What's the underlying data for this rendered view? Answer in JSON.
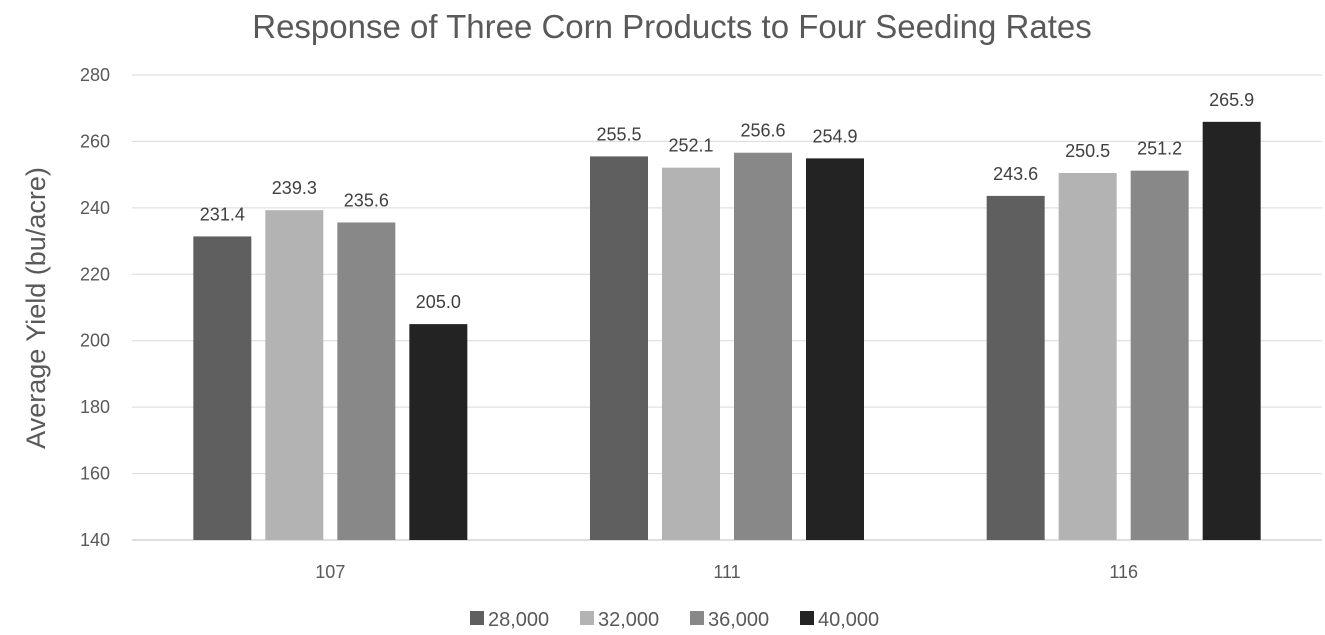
{
  "chart_data": {
    "type": "bar",
    "title": "Response of Three Corn Products to Four Seeding Rates",
    "xlabel": "",
    "ylabel": "Average Yield (bu/acre)",
    "ylim": [
      140,
      280
    ],
    "yticks": [
      140,
      160,
      180,
      200,
      220,
      240,
      260,
      280
    ],
    "categories": [
      "107",
      "111",
      "116"
    ],
    "series": [
      {
        "name": "28,000",
        "values": [
          231.4,
          255.5,
          243.6
        ],
        "color": "#5f5f5f"
      },
      {
        "name": "32,000",
        "values": [
          239.3,
          252.1,
          250.5
        ],
        "color": "#b3b3b3"
      },
      {
        "name": "36,000",
        "values": [
          235.6,
          256.6,
          251.2
        ],
        "color": "#888888"
      },
      {
        "name": "40,000",
        "values": [
          205.0,
          254.9,
          265.9
        ],
        "color": "#232323"
      }
    ],
    "data_labels": [
      [
        "231.4",
        "255.5",
        "243.6"
      ],
      [
        "239.3",
        "252.1",
        "250.5"
      ],
      [
        "235.6",
        "256.6",
        "251.2"
      ],
      [
        "205.0",
        "254.9",
        "265.9"
      ]
    ],
    "grid": true,
    "legend_position": "bottom"
  }
}
